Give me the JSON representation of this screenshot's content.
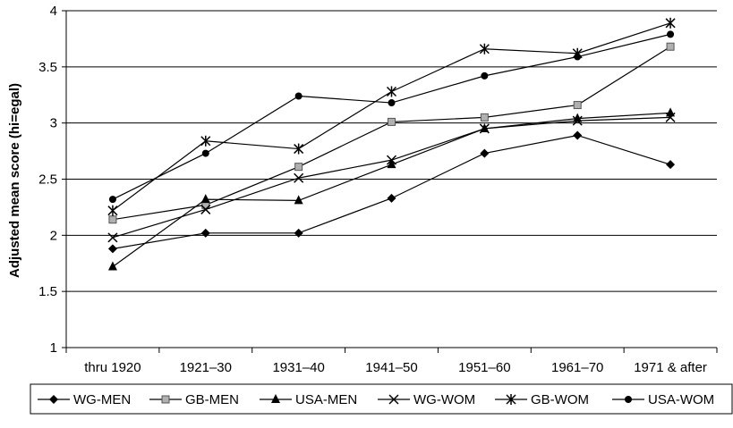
{
  "chart_data": {
    "type": "line",
    "title": "",
    "xlabel": "",
    "ylabel": "Adjusted mean score (hi=egal)",
    "ylim": [
      1,
      4
    ],
    "yticks": [
      "1",
      "1.5",
      "2",
      "2.5",
      "3",
      "3.5",
      "4"
    ],
    "categories": [
      "thru 1920",
      "1921–30",
      "1931–40",
      "1941–50",
      "1951–60",
      "1961–70",
      "1971 & after"
    ],
    "grid": "horizontal",
    "legend_position": "bottom",
    "series": [
      {
        "name": "WG-MEN",
        "marker": "diamond",
        "values": [
          1.88,
          2.02,
          2.02,
          2.33,
          2.73,
          2.89,
          2.63
        ]
      },
      {
        "name": "GB-MEN",
        "marker": "square",
        "values": [
          2.14,
          2.27,
          2.61,
          3.01,
          3.05,
          3.16,
          3.68
        ]
      },
      {
        "name": "USA-MEN",
        "marker": "triangle",
        "values": [
          1.72,
          2.32,
          2.31,
          2.63,
          2.95,
          3.04,
          3.09
        ]
      },
      {
        "name": "WG-WOM",
        "marker": "x",
        "values": [
          1.98,
          2.23,
          2.51,
          2.67,
          2.95,
          3.02,
          3.05
        ]
      },
      {
        "name": "GB-WOM",
        "marker": "star",
        "values": [
          2.22,
          2.84,
          2.77,
          3.28,
          3.66,
          3.62,
          3.89
        ]
      },
      {
        "name": "USA-WOM",
        "marker": "circle",
        "values": [
          2.32,
          2.73,
          3.24,
          3.18,
          3.42,
          3.59,
          3.79
        ]
      }
    ]
  }
}
